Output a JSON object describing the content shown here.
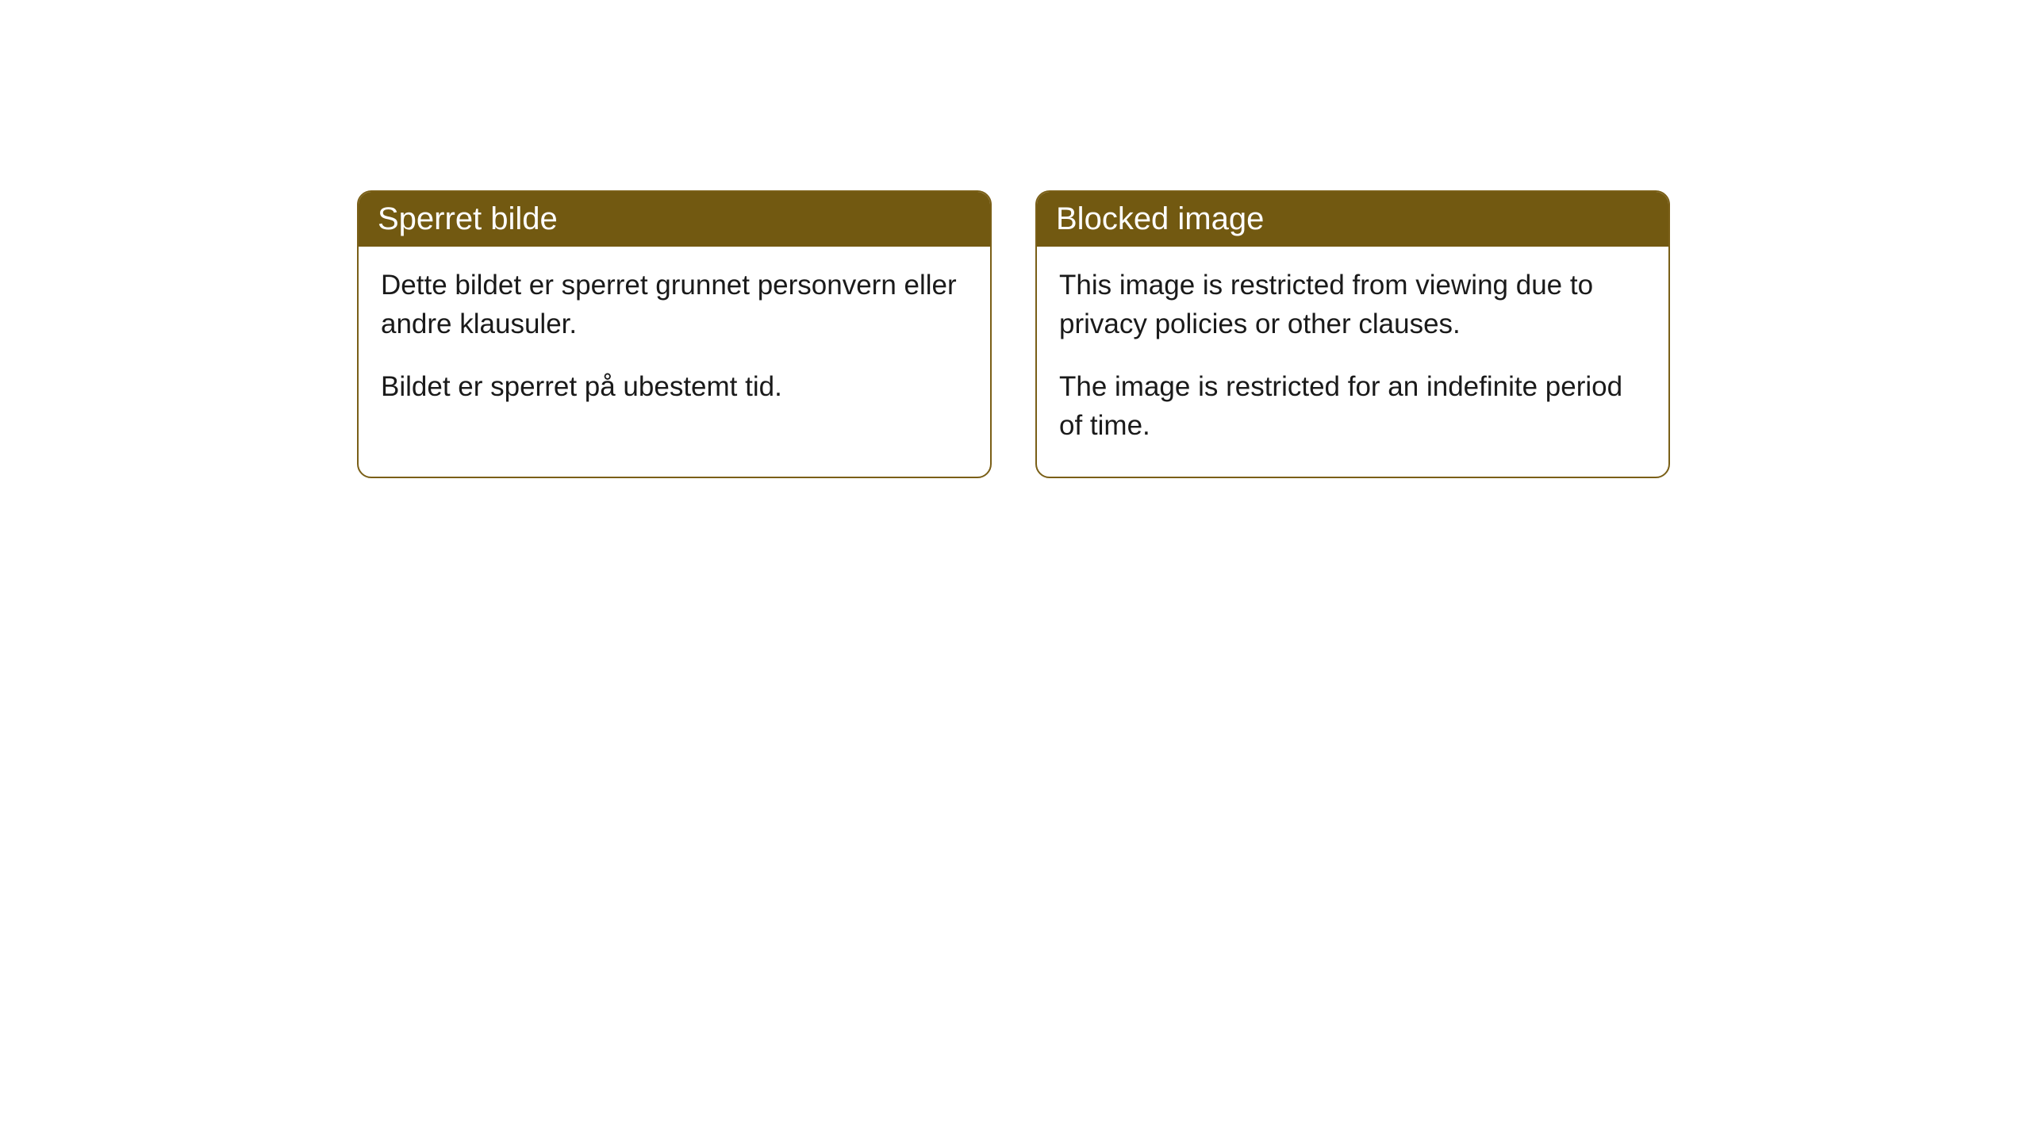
{
  "cards": [
    {
      "title": "Sperret bilde",
      "paragraph1": "Dette bildet er sperret grunnet personvern eller andre klausuler.",
      "paragraph2": "Bildet er sperret på ubestemt tid."
    },
    {
      "title": "Blocked image",
      "paragraph1": "This image is restricted from viewing due to privacy policies or other clauses.",
      "paragraph2": "The image is restricted for an indefinite period of time."
    }
  ],
  "styling": {
    "header_bg_color": "#725911",
    "header_text_color": "#ffffff",
    "border_color": "#7a5f17",
    "body_text_color": "#1a1a1a",
    "card_bg_color": "#ffffff",
    "border_radius": 18,
    "header_fontsize": 40,
    "body_fontsize": 35
  }
}
